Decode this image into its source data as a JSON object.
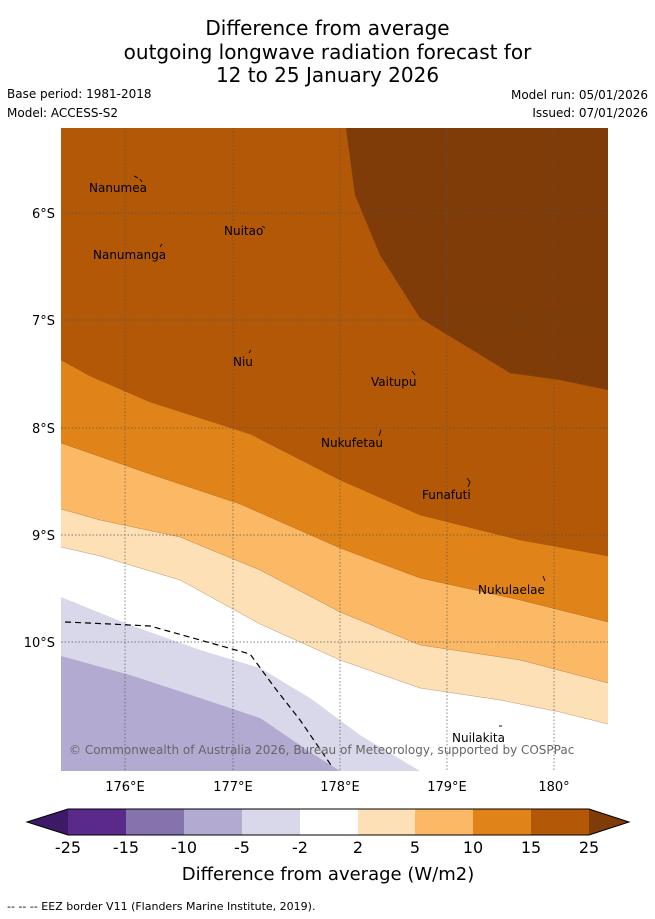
{
  "title": {
    "line1": "Difference from average",
    "line2": "outgoing longwave radiation forecast for",
    "line3": "12 to 25 January 2026"
  },
  "meta": {
    "base_period": "Base period: 1981-2018",
    "model": "Model: ACCESS-S2",
    "model_run": "Model run: 05/01/2026",
    "issued": "Issued: 07/01/2026"
  },
  "map": {
    "lat_labels": [
      "6°S",
      "7°S",
      "8°S",
      "9°S",
      "10°S"
    ],
    "lon_labels": [
      "176°E",
      "177°E",
      "178°E",
      "179°E",
      "180°"
    ],
    "places": [
      {
        "name": "Nanumea"
      },
      {
        "name": "Nuitao"
      },
      {
        "name": "Nanumanga"
      },
      {
        "name": "Niu"
      },
      {
        "name": "Vaitupu"
      },
      {
        "name": "Nukufetau"
      },
      {
        "name": "Funafuti"
      },
      {
        "name": "Nukulaelae"
      },
      {
        "name": "Nuilakita"
      }
    ],
    "copyright": "© Commonwealth of Australia 2026, Bureau of Meteorology, supported by COSPPac"
  },
  "legend": {
    "ticks": [
      "-25",
      "-15",
      "-10",
      "-5",
      "-2",
      "2",
      "5",
      "10",
      "15",
      "25"
    ],
    "label": "Difference from average (W/m2)",
    "colors": [
      "#3d1a66",
      "#5a2a8a",
      "#8573ae",
      "#b2aad0",
      "#d8d8ea",
      "#ffffff",
      "#fde0b6",
      "#fbb865",
      "#e08419",
      "#b35806",
      "#7f3b08"
    ]
  },
  "footnote": "-- -- -- EEZ border V11 (Flanders Marine Institute, 2019)."
}
